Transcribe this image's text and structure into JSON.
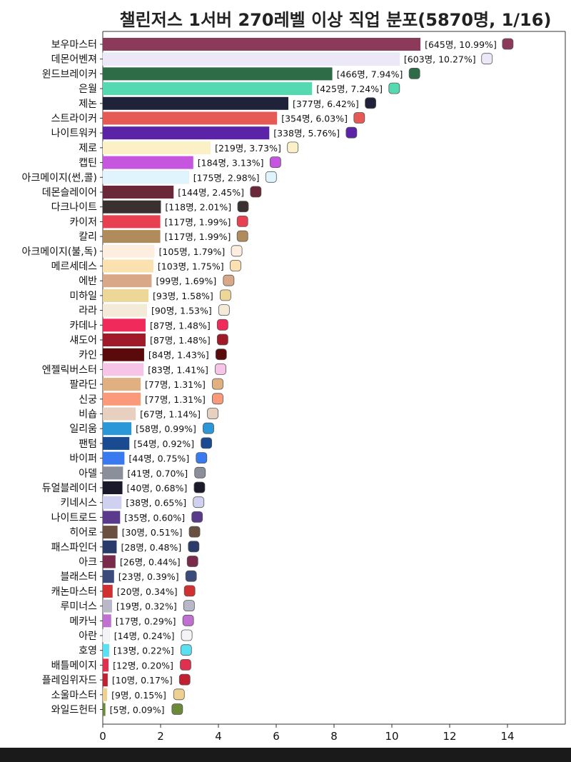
{
  "chart_data": {
    "type": "bar",
    "orientation": "horizontal",
    "title": "챌린저스 1서버 270레벨 이상 직업 분포(5870명, 1/16)",
    "xlabel": "",
    "ylabel": "",
    "xlim": [
      0,
      16
    ],
    "xticks": [
      "0",
      "2",
      "4",
      "6",
      "8",
      "10",
      "12",
      "14"
    ],
    "grid": false,
    "bars": [
      {
        "label": "보우마스터",
        "value": 10.99,
        "annotation": "[645명, 10.99%]",
        "color": "#8b3a5a"
      },
      {
        "label": "데몬어벤져",
        "value": 10.27,
        "annotation": "[603명, 10.27%]",
        "color": "#ece8f8"
      },
      {
        "label": "윈드브레이커",
        "value": 7.94,
        "annotation": "[466명, 7.94%]",
        "color": "#2e6b47"
      },
      {
        "label": "은월",
        "value": 7.24,
        "annotation": "[425명, 7.24%]",
        "color": "#55d9b0"
      },
      {
        "label": "제논",
        "value": 6.42,
        "annotation": "[377명, 6.42%]",
        "color": "#20223a"
      },
      {
        "label": "스트라이커",
        "value": 6.03,
        "annotation": "[354명, 6.03%]",
        "color": "#e55a55"
      },
      {
        "label": "나이트워커",
        "value": 5.76,
        "annotation": "[338명, 5.76%]",
        "color": "#5a23a8"
      },
      {
        "label": "제로",
        "value": 3.73,
        "annotation": "[219명, 3.73%]",
        "color": "#fbf0c6"
      },
      {
        "label": "캡틴",
        "value": 3.13,
        "annotation": "[184명, 3.13%]",
        "color": "#c656e0"
      },
      {
        "label": "아크메이지(썬,콜)",
        "value": 2.98,
        "annotation": "[175명, 2.98%]",
        "color": "#dff4fd"
      },
      {
        "label": "데몬슬레이어",
        "value": 2.45,
        "annotation": "[144명, 2.45%]",
        "color": "#6a2838"
      },
      {
        "label": "다크나이트",
        "value": 2.01,
        "annotation": "[118명, 2.01%]",
        "color": "#3a3030"
      },
      {
        "label": "카이저",
        "value": 1.99,
        "annotation": "[117명, 1.99%]",
        "color": "#e84050"
      },
      {
        "label": "칼리",
        "value": 1.99,
        "annotation": "[117명, 1.99%]",
        "color": "#b08b5c"
      },
      {
        "label": "아크메이지(불,독)",
        "value": 1.79,
        "annotation": "[105명, 1.79%]",
        "color": "#fdeee0"
      },
      {
        "label": "메르세데스",
        "value": 1.75,
        "annotation": "[103명, 1.75%]",
        "color": "#fbe0b0"
      },
      {
        "label": "에반",
        "value": 1.69,
        "annotation": "[99명, 1.69%]",
        "color": "#d8a888"
      },
      {
        "label": "미하일",
        "value": 1.58,
        "annotation": "[93명, 1.58%]",
        "color": "#ecd698"
      },
      {
        "label": "라라",
        "value": 1.53,
        "annotation": "[90명, 1.53%]",
        "color": "#f3ead8"
      },
      {
        "label": "카데나",
        "value": 1.48,
        "annotation": "[87명, 1.48%]",
        "color": "#f02a5a"
      },
      {
        "label": "섀도어",
        "value": 1.48,
        "annotation": "[87명, 1.48%]",
        "color": "#a01a2a"
      },
      {
        "label": "카인",
        "value": 1.43,
        "annotation": "[84명, 1.43%]",
        "color": "#5a0a0a"
      },
      {
        "label": "엔젤릭버스터",
        "value": 1.41,
        "annotation": "[83명, 1.41%]",
        "color": "#f6c4e6"
      },
      {
        "label": "팔라딘",
        "value": 1.31,
        "annotation": "[77명, 1.31%]",
        "color": "#e0b080"
      },
      {
        "label": "신궁",
        "value": 1.31,
        "annotation": "[77명, 1.31%]",
        "color": "#fb9a7a"
      },
      {
        "label": "비숍",
        "value": 1.14,
        "annotation": "[67명, 1.14%]",
        "color": "#e8d0c0"
      },
      {
        "label": "일리움",
        "value": 0.99,
        "annotation": "[58명, 0.99%]",
        "color": "#2a98d8"
      },
      {
        "label": "팬텀",
        "value": 0.92,
        "annotation": "[54명, 0.92%]",
        "color": "#1a4a90"
      },
      {
        "label": "바이퍼",
        "value": 0.75,
        "annotation": "[44명, 0.75%]",
        "color": "#3a7af0"
      },
      {
        "label": "아델",
        "value": 0.7,
        "annotation": "[41명, 0.70%]",
        "color": "#8a8f9a"
      },
      {
        "label": "듀얼블레이더",
        "value": 0.68,
        "annotation": "[40명, 0.68%]",
        "color": "#1a1a2a"
      },
      {
        "label": "키네시스",
        "value": 0.65,
        "annotation": "[38명, 0.65%]",
        "color": "#d0d0f0"
      },
      {
        "label": "나이트로드",
        "value": 0.6,
        "annotation": "[35명, 0.60%]",
        "color": "#5a3a8a"
      },
      {
        "label": "히어로",
        "value": 0.51,
        "annotation": "[30명, 0.51%]",
        "color": "#6a5040"
      },
      {
        "label": "패스파인더",
        "value": 0.48,
        "annotation": "[28명, 0.48%]",
        "color": "#2a3a6a"
      },
      {
        "label": "아크",
        "value": 0.44,
        "annotation": "[26명, 0.44%]",
        "color": "#7a2a4a"
      },
      {
        "label": "블래스터",
        "value": 0.39,
        "annotation": "[23명, 0.39%]",
        "color": "#3a4a7a"
      },
      {
        "label": "캐논마스터",
        "value": 0.34,
        "annotation": "[20명, 0.34%]",
        "color": "#d03030"
      },
      {
        "label": "루미너스",
        "value": 0.32,
        "annotation": "[19명, 0.32%]",
        "color": "#b8b8c8"
      },
      {
        "label": "메카닉",
        "value": 0.29,
        "annotation": "[17명, 0.29%]",
        "color": "#c070d0"
      },
      {
        "label": "아란",
        "value": 0.24,
        "annotation": "[14명, 0.24%]",
        "color": "#f4f4f8"
      },
      {
        "label": "호영",
        "value": 0.22,
        "annotation": "[13명, 0.22%]",
        "color": "#5ae0f0"
      },
      {
        "label": "배틀메이지",
        "value": 0.2,
        "annotation": "[12명, 0.20%]",
        "color": "#e03050"
      },
      {
        "label": "플레임위자드",
        "value": 0.17,
        "annotation": "[10명, 0.17%]",
        "color": "#c02030"
      },
      {
        "label": "소울마스터",
        "value": 0.15,
        "annotation": "[9명, 0.15%]",
        "color": "#f0d090"
      },
      {
        "label": "와일드헌터",
        "value": 0.09,
        "annotation": "[5명, 0.09%]",
        "color": "#6a8a3a"
      }
    ]
  },
  "colors": {
    "axis": "#333333",
    "text": "#111111",
    "background": "#ffffff",
    "bottom_bar": "#1a1a1a"
  }
}
